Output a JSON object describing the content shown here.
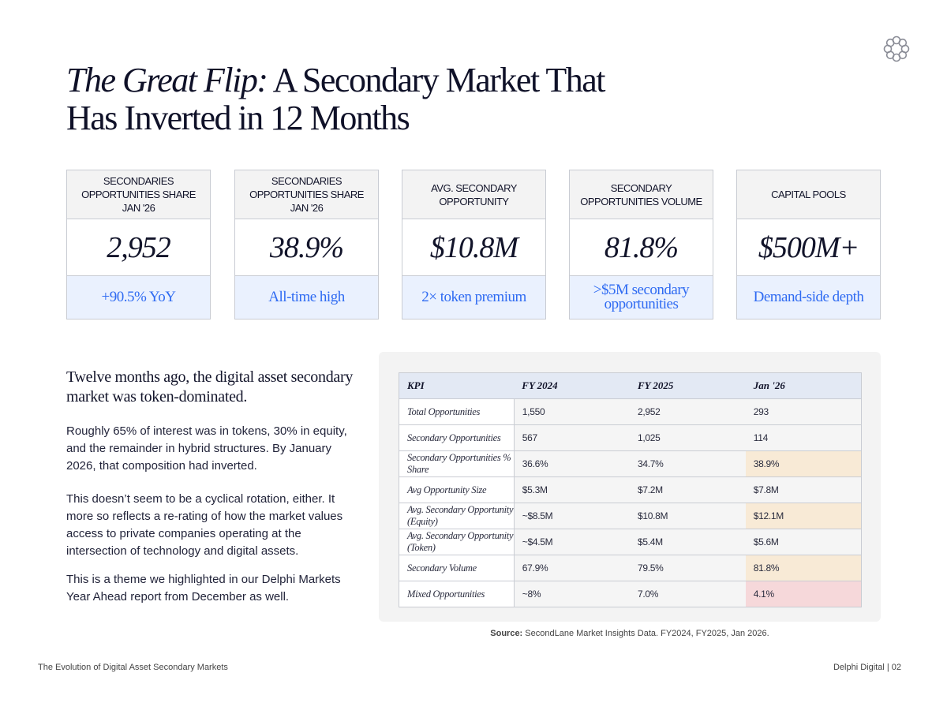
{
  "title": {
    "italic": "The Great Flip:",
    "rest": " A Secondary Market That",
    "line2": "Has Inverted in 12 Months"
  },
  "cards": [
    {
      "header": "SECONDARIES OPPORTUNITIES SHARE JAN '26",
      "value": "2,952",
      "note": "+90.5% YoY"
    },
    {
      "header": "SECONDARIES OPPORTUNITIES SHARE JAN '26",
      "value": "38.9%",
      "note": "All-time high"
    },
    {
      "header": "AVG. SECONDARY OPPORTUNITY",
      "value": "$10.8M",
      "note": "2× token premium"
    },
    {
      "header": "SECONDARY OPPORTUNITIES VOLUME",
      "value": "81.8%",
      "note": ">$5M secondary opportunities"
    },
    {
      "header": "CAPITAL POOLS",
      "value": "$500M+",
      "note": "Demand-side depth"
    }
  ],
  "lede": "Twelve months ago, the digital asset secondary market was token-dominated.",
  "paragraphs": [
    "Roughly 65% of interest was in tokens, 30% in equity, and the remainder in hybrid structures. By January 2026, that composition had inverted.",
    "This doesn’t seem to be a cyclical rotation, either. It more so reflects a re-rating of how the market values access to private companies operating at the intersection of technology and digital assets.",
    "This is a theme we highlighted in our Delphi Markets Year Ahead report from December as well."
  ],
  "table": {
    "headers": [
      "KPI",
      "FY 2024",
      "FY 2025",
      "Jan '26"
    ],
    "rows": [
      [
        "Total Opportunities",
        "1,550",
        "2,952",
        "293"
      ],
      [
        "Secondary Opportunities",
        "567",
        "1,025",
        "114"
      ],
      [
        "Secondary Opportunities % Share",
        "36.6%",
        "34.7%",
        "38.9%"
      ],
      [
        "Avg Opportunity Size",
        "$5.3M",
        "$7.2M",
        "$7.8M"
      ],
      [
        "Avg. Secondary Opportunity (Equity)",
        "~$8.5M",
        "$10.8M",
        "$12.1M"
      ],
      [
        "Avg. Secondary Opportunity (Token)",
        "~$4.5M",
        "$5.4M",
        "$5.6M"
      ],
      [
        "Secondary Volume",
        "67.9%",
        "79.5%",
        "81.8%"
      ],
      [
        "Mixed Opportunities",
        "~8%",
        "7.0%",
        "4.1%"
      ]
    ]
  },
  "source": {
    "label": "Source:",
    "text": " SecondLane Market Insights Data. FY2024, FY2025, Jan 2026."
  },
  "footer": {
    "left": "The Evolution of Digital Asset Secondary Markets",
    "right": "Delphi Digital  |  02"
  }
}
